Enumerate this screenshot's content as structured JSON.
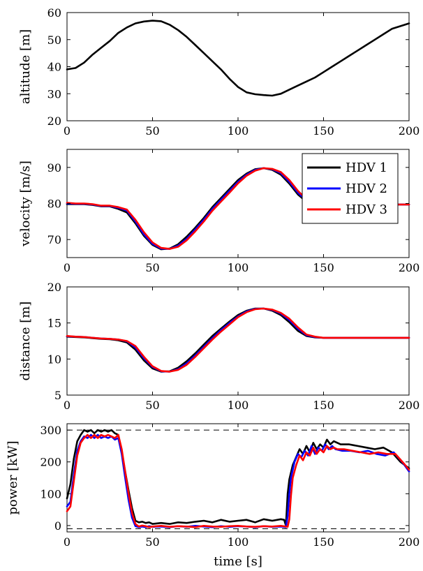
{
  "chart_data": [
    {
      "type": "line",
      "id": "altitude",
      "ylabel": "altitude [m]",
      "xlabel": "",
      "xlim": [
        0,
        200
      ],
      "ylim": [
        20,
        60
      ],
      "xticks": [
        "0",
        "50",
        "100",
        "150",
        "200"
      ],
      "yticks": [
        "20",
        "30",
        "40",
        "50",
        "60"
      ],
      "grid": false,
      "series": [
        {
          "color": "#000000",
          "x": [
            0,
            5,
            10,
            15,
            20,
            25,
            30,
            35,
            40,
            45,
            50,
            55,
            60,
            65,
            70,
            75,
            80,
            85,
            90,
            95,
            100,
            105,
            110,
            115,
            120,
            125,
            130,
            135,
            140,
            145,
            150,
            155,
            160,
            165,
            170,
            175,
            180,
            185,
            190,
            195,
            200
          ],
          "y": [
            39,
            39.5,
            41.5,
            44.5,
            47,
            49.5,
            52.5,
            54.5,
            56,
            56.7,
            57,
            56.8,
            55.5,
            53.5,
            51,
            48,
            45,
            42,
            39,
            35.5,
            32.5,
            30.5,
            29.8,
            29.5,
            29.3,
            30,
            31.5,
            33,
            34.5,
            36,
            38,
            40,
            42,
            44,
            46,
            48,
            50,
            52,
            54,
            55,
            56
          ]
        }
      ]
    },
    {
      "type": "line",
      "id": "velocity",
      "ylabel": "velocity [m/s]",
      "xlabel": "",
      "xlim": [
        0,
        200
      ],
      "ylim": [
        65,
        95
      ],
      "xticks": [
        "0",
        "50",
        "100",
        "150",
        "200"
      ],
      "yticks": [
        "70",
        "80",
        "90"
      ],
      "grid": false,
      "legend": "top-right",
      "series": [
        {
          "name": "HDV 1",
          "color": "#000000",
          "x": [
            0,
            5,
            10,
            15,
            20,
            25,
            30,
            35,
            40,
            45,
            50,
            55,
            60,
            65,
            70,
            75,
            80,
            85,
            90,
            95,
            100,
            105,
            110,
            115,
            120,
            125,
            130,
            135,
            140,
            145,
            150,
            155,
            160,
            165,
            170,
            175,
            180,
            185,
            190,
            195,
            200
          ],
          "y": [
            79.8,
            79.8,
            79.8,
            79.6,
            79.2,
            79.2,
            78.5,
            77.5,
            74.5,
            71,
            68.5,
            67.3,
            67.5,
            68.7,
            70.8,
            73.3,
            76,
            79,
            81.5,
            84,
            86.5,
            88.3,
            89.5,
            89.8,
            89.3,
            88,
            85.5,
            82.5,
            80.5,
            79.8,
            79.7,
            79.7,
            79.7,
            79.7,
            79.7,
            79.7,
            79.7,
            79.7,
            79.7,
            79.7,
            79.7
          ]
        },
        {
          "name": "HDV 2",
          "color": "#0000ff",
          "x": [
            0,
            5,
            10,
            15,
            20,
            25,
            30,
            35,
            40,
            45,
            50,
            55,
            60,
            65,
            70,
            75,
            80,
            85,
            90,
            95,
            100,
            105,
            110,
            115,
            120,
            125,
            130,
            135,
            140,
            145,
            150,
            155,
            160,
            165,
            170,
            175,
            180,
            185,
            190,
            195,
            200
          ],
          "y": [
            80,
            79.9,
            79.9,
            79.7,
            79.3,
            79.3,
            78.8,
            78,
            75,
            71.4,
            68.8,
            67.5,
            67.4,
            68.3,
            70.2,
            72.8,
            75.5,
            78.5,
            81,
            83.5,
            86,
            88,
            89.3,
            89.8,
            89.5,
            88.4,
            86,
            83,
            80.8,
            79.9,
            79.7,
            79.7,
            79.7,
            79.7,
            79.7,
            79.7,
            79.7,
            79.7,
            79.7,
            79.7,
            79.7
          ]
        },
        {
          "name": "HDV 3",
          "color": "#ff0000",
          "x": [
            0,
            5,
            10,
            15,
            20,
            25,
            30,
            35,
            40,
            45,
            50,
            55,
            60,
            65,
            70,
            75,
            80,
            85,
            90,
            95,
            100,
            105,
            110,
            115,
            120,
            125,
            130,
            135,
            140,
            145,
            150,
            155,
            160,
            165,
            170,
            175,
            180,
            185,
            190,
            195,
            200
          ],
          "y": [
            80.2,
            80,
            80,
            79.8,
            79.4,
            79.4,
            79,
            78.3,
            75.5,
            72,
            69.2,
            67.7,
            67.4,
            68,
            69.8,
            72.3,
            75,
            78,
            80.5,
            83,
            85.6,
            87.7,
            89.1,
            89.8,
            89.6,
            88.7,
            86.5,
            83.5,
            81.2,
            80,
            79.8,
            79.7,
            79.7,
            79.7,
            79.7,
            79.7,
            79.7,
            79.7,
            79.7,
            79.7,
            79.7
          ]
        }
      ]
    },
    {
      "type": "line",
      "id": "distance",
      "ylabel": "distance [m]",
      "xlabel": "",
      "xlim": [
        0,
        200
      ],
      "ylim": [
        5,
        20
      ],
      "xticks": [
        "0",
        "50",
        "100",
        "150",
        "200"
      ],
      "yticks": [
        "5",
        "10",
        "15",
        "20"
      ],
      "grid": false,
      "series": [
        {
          "name": "HDV 1",
          "color": "#000000",
          "x": [
            0,
            5,
            10,
            15,
            20,
            25,
            30,
            35,
            40,
            45,
            50,
            55,
            60,
            65,
            70,
            75,
            80,
            85,
            90,
            95,
            100,
            105,
            110,
            115,
            120,
            125,
            130,
            135,
            140,
            145,
            150,
            155,
            160,
            165,
            170,
            175,
            180,
            185,
            190,
            195,
            200
          ],
          "y": [
            13.1,
            13.05,
            13,
            12.9,
            12.8,
            12.75,
            12.6,
            12.3,
            11.3,
            9.8,
            8.7,
            8.25,
            8.3,
            8.8,
            9.7,
            10.8,
            12,
            13.2,
            14.2,
            15.2,
            16.1,
            16.7,
            17,
            17,
            16.7,
            16.1,
            15.1,
            13.9,
            13.2,
            13,
            12.95,
            12.95,
            12.95,
            12.95,
            12.95,
            12.95,
            12.95,
            12.95,
            12.95,
            12.95,
            12.95
          ]
        },
        {
          "name": "HDV 2",
          "color": "#0000ff",
          "x": [
            0,
            5,
            10,
            15,
            20,
            25,
            30,
            35,
            40,
            45,
            50,
            55,
            60,
            65,
            70,
            75,
            80,
            85,
            90,
            95,
            100,
            105,
            110,
            115,
            120,
            125,
            130,
            135,
            140,
            145,
            150,
            155,
            160,
            165,
            170,
            175,
            180,
            185,
            190,
            195,
            200
          ],
          "y": [
            13.15,
            13.1,
            13.05,
            12.95,
            12.85,
            12.8,
            12.7,
            12.45,
            11.6,
            10.1,
            8.9,
            8.3,
            8.25,
            8.6,
            9.4,
            10.5,
            11.7,
            12.9,
            14,
            15,
            15.9,
            16.6,
            16.95,
            17,
            16.8,
            16.3,
            15.4,
            14.2,
            13.3,
            13.05,
            12.95,
            12.95,
            12.95,
            12.95,
            12.95,
            12.95,
            12.95,
            12.95,
            12.95,
            12.95,
            12.95
          ]
        },
        {
          "name": "HDV 3",
          "color": "#ff0000",
          "x": [
            0,
            5,
            10,
            15,
            20,
            25,
            30,
            35,
            40,
            45,
            50,
            55,
            60,
            65,
            70,
            75,
            80,
            85,
            90,
            95,
            100,
            105,
            110,
            115,
            120,
            125,
            130,
            135,
            140,
            145,
            150,
            155,
            160,
            165,
            170,
            175,
            180,
            185,
            190,
            195,
            200
          ],
          "y": [
            13.2,
            13.1,
            13.05,
            12.95,
            12.85,
            12.8,
            12.7,
            12.5,
            11.8,
            10.3,
            9,
            8.35,
            8.25,
            8.5,
            9.2,
            10.3,
            11.5,
            12.7,
            13.8,
            14.8,
            15.8,
            16.5,
            16.9,
            17,
            16.85,
            16.4,
            15.6,
            14.4,
            13.4,
            13.1,
            12.95,
            12.95,
            12.95,
            12.95,
            12.95,
            12.95,
            12.95,
            12.95,
            12.95,
            12.95,
            12.95
          ]
        }
      ]
    },
    {
      "type": "line",
      "id": "power",
      "ylabel": "power [kW]",
      "xlabel": "time [s]",
      "xlim": [
        0,
        200
      ],
      "ylim": [
        -20,
        320
      ],
      "xticks": [
        "0",
        "50",
        "100",
        "150",
        "200"
      ],
      "yticks": [
        "0",
        "100",
        "200",
        "300"
      ],
      "grid": false,
      "reference_lines": [
        {
          "y": 300,
          "style": "dashed",
          "color": "#000000"
        },
        {
          "y": -10,
          "style": "dashed",
          "color": "#000000"
        }
      ],
      "series": [
        {
          "name": "HDV 1",
          "color": "#000000",
          "x": [
            0,
            2,
            4,
            6,
            8,
            10,
            12,
            14,
            16,
            18,
            20,
            22,
            24,
            26,
            28,
            30,
            32,
            34,
            36,
            38,
            40,
            42,
            44,
            46,
            48,
            50,
            55,
            60,
            65,
            70,
            75,
            80,
            85,
            90,
            95,
            100,
            105,
            110,
            115,
            120,
            125,
            127,
            128,
            129,
            130,
            132,
            134,
            136,
            138,
            140,
            142,
            144,
            146,
            148,
            150,
            152,
            154,
            156,
            160,
            165,
            170,
            175,
            180,
            185,
            190,
            195,
            200
          ],
          "y": [
            85,
            130,
            210,
            265,
            285,
            300,
            295,
            300,
            290,
            300,
            295,
            300,
            295,
            300,
            290,
            285,
            230,
            170,
            110,
            55,
            15,
            10,
            12,
            8,
            10,
            5,
            8,
            5,
            10,
            8,
            12,
            15,
            10,
            18,
            12,
            15,
            18,
            10,
            20,
            15,
            20,
            18,
            0,
            100,
            145,
            190,
            215,
            240,
            225,
            250,
            230,
            260,
            240,
            255,
            245,
            270,
            255,
            265,
            255,
            255,
            250,
            245,
            240,
            245,
            230,
            200,
            180
          ]
        },
        {
          "name": "HDV 2",
          "color": "#0000ff",
          "x": [
            0,
            2,
            4,
            6,
            8,
            10,
            12,
            14,
            16,
            18,
            20,
            22,
            24,
            26,
            28,
            30,
            32,
            34,
            36,
            38,
            40,
            42,
            44,
            46,
            48,
            50,
            55,
            60,
            65,
            70,
            75,
            80,
            85,
            90,
            95,
            100,
            105,
            110,
            115,
            120,
            125,
            128,
            129,
            130,
            131,
            133,
            135,
            137,
            139,
            141,
            143,
            145,
            147,
            149,
            151,
            153,
            155,
            157,
            161,
            166,
            171,
            176,
            181,
            186,
            191,
            196,
            200
          ],
          "y": [
            60,
            75,
            160,
            235,
            265,
            280,
            275,
            285,
            275,
            285,
            275,
            280,
            275,
            280,
            270,
            275,
            225,
            150,
            80,
            25,
            -2,
            -5,
            -3,
            -5,
            -2,
            -4,
            -3,
            -5,
            -2,
            -4,
            -1,
            -3,
            -5,
            -2,
            -4,
            -2,
            -3,
            -5,
            -2,
            -4,
            -3,
            -5,
            30,
            100,
            150,
            200,
            225,
            215,
            235,
            220,
            250,
            225,
            245,
            235,
            255,
            240,
            250,
            240,
            235,
            235,
            230,
            235,
            225,
            220,
            230,
            200,
            170
          ]
        },
        {
          "name": "HDV 3",
          "color": "#ff0000",
          "x": [
            0,
            2,
            4,
            6,
            8,
            10,
            12,
            14,
            16,
            18,
            20,
            22,
            24,
            26,
            28,
            30,
            32,
            34,
            36,
            38,
            40,
            42,
            44,
            46,
            48,
            50,
            55,
            60,
            65,
            70,
            75,
            80,
            85,
            90,
            95,
            100,
            105,
            110,
            115,
            120,
            125,
            129,
            130,
            131,
            132,
            134,
            136,
            138,
            140,
            142,
            144,
            146,
            148,
            150,
            152,
            154,
            156,
            158,
            162,
            167,
            172,
            177,
            182,
            187,
            192,
            197,
            200
          ],
          "y": [
            45,
            60,
            140,
            220,
            260,
            275,
            285,
            275,
            285,
            275,
            285,
            280,
            285,
            280,
            275,
            285,
            240,
            170,
            100,
            40,
            5,
            -3,
            0,
            -2,
            -5,
            -3,
            -1,
            -4,
            -2,
            -3,
            -5,
            -1,
            -3,
            -4,
            -2,
            -1,
            -3,
            -4,
            -2,
            -3,
            -1,
            -4,
            20,
            95,
            150,
            190,
            220,
            205,
            230,
            220,
            245,
            225,
            240,
            230,
            250,
            240,
            245,
            240,
            240,
            235,
            230,
            225,
            230,
            225,
            225,
            195,
            175
          ]
        }
      ]
    }
  ]
}
